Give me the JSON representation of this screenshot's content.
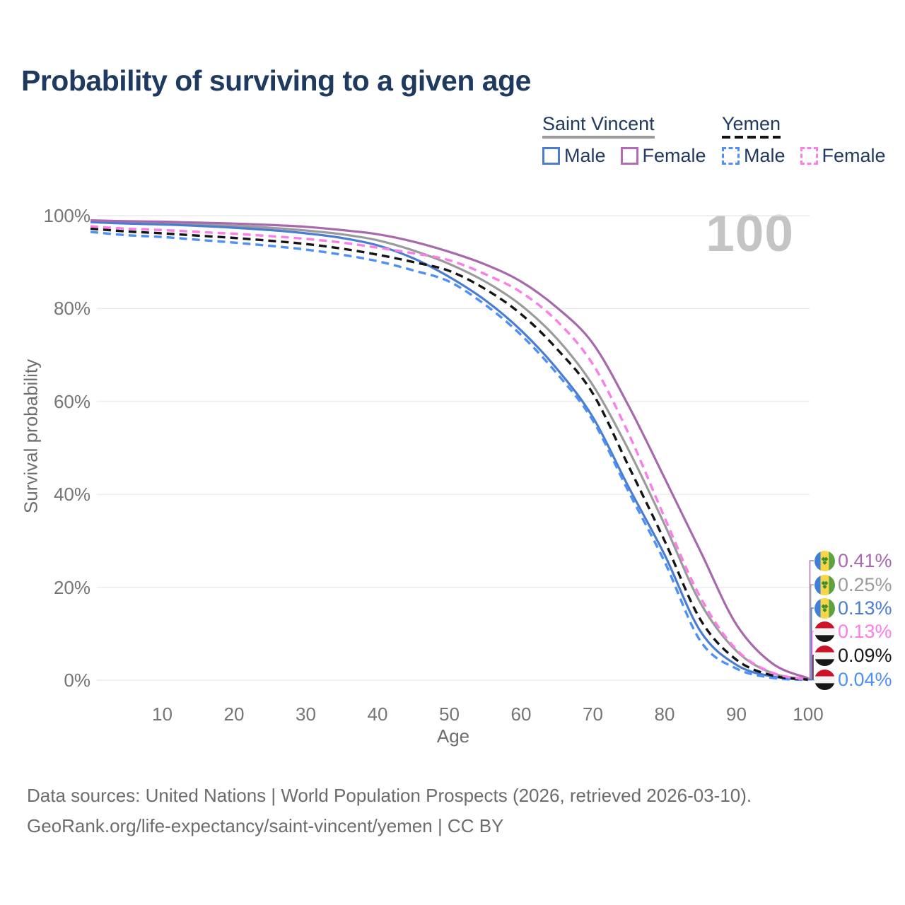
{
  "title": "Probability of surviving to a given age",
  "watermark": "100",
  "legend": {
    "groups": [
      {
        "title": "Saint Vincent",
        "line_style": "solid",
        "color": "#9b9b9b",
        "items": [
          {
            "label": "Male",
            "color": "#4a7dd0"
          },
          {
            "label": "Female",
            "color": "#b46ab4"
          }
        ]
      },
      {
        "title": "Yemen",
        "line_style": "dashed",
        "color": "#141414",
        "items": [
          {
            "label": "Male",
            "color": "#4e90f5"
          },
          {
            "label": "Female",
            "color": "#fc7de8"
          }
        ]
      }
    ]
  },
  "chart_data": {
    "type": "line",
    "title": "Probability of surviving to a given age",
    "xlabel": "Age",
    "ylabel": "Survival probability",
    "xlim": [
      0,
      100
    ],
    "ylim": [
      0,
      100
    ],
    "grid": "horizontal-only",
    "legend_position": "top-right",
    "annotation": "100",
    "x_ticks": [
      {
        "value": 10,
        "label": "10"
      },
      {
        "value": 20,
        "label": "20"
      },
      {
        "value": 30,
        "label": "30"
      },
      {
        "value": 40,
        "label": "40"
      },
      {
        "value": 50,
        "label": "50"
      },
      {
        "value": 60,
        "label": "60"
      },
      {
        "value": 70,
        "label": "70"
      },
      {
        "value": 80,
        "label": "80"
      },
      {
        "value": 90,
        "label": "90"
      },
      {
        "value": 100,
        "label": "100"
      }
    ],
    "y_ticks": [
      {
        "value": 0,
        "label": "0%"
      },
      {
        "value": 20,
        "label": "20%"
      },
      {
        "value": 40,
        "label": "40%"
      },
      {
        "value": 60,
        "label": "60%"
      },
      {
        "value": 80,
        "label": "80%"
      },
      {
        "value": 100,
        "label": "100%"
      }
    ],
    "ages": [
      0,
      5,
      10,
      15,
      20,
      25,
      30,
      35,
      40,
      45,
      50,
      55,
      60,
      65,
      70,
      75,
      80,
      85,
      90,
      95,
      100
    ],
    "series": [
      {
        "id": "sv-female",
        "name": "Saint Vincent Female",
        "country": "Saint Vincent",
        "sex": "Female",
        "color": "#a868ad",
        "dash": false,
        "end_label": "0.41%",
        "values": [
          99.0,
          98.8,
          98.7,
          98.5,
          98.3,
          98.0,
          97.6,
          96.9,
          96.0,
          94.4,
          92.2,
          89.5,
          85.8,
          80.2,
          72.5,
          59.0,
          43.5,
          27.7,
          12.0,
          3.6,
          0.41
        ]
      },
      {
        "id": "sv-both",
        "name": "Saint Vincent Both sexes",
        "country": "Saint Vincent",
        "sex": "Both",
        "color": "#9b9b9b",
        "dash": false,
        "end_label": "0.25%",
        "values": [
          98.8,
          98.5,
          98.3,
          98.1,
          97.8,
          97.4,
          96.8,
          96.0,
          94.7,
          92.5,
          89.6,
          85.8,
          80.7,
          73.5,
          63.5,
          49.5,
          33.5,
          16.6,
          6.3,
          1.5,
          0.25
        ]
      },
      {
        "id": "sv-male",
        "name": "Saint Vincent Male",
        "country": "Saint Vincent",
        "sex": "Male",
        "color": "#4a7dd0",
        "dash": false,
        "end_label": "0.13%",
        "values": [
          98.6,
          98.3,
          98.1,
          97.8,
          97.4,
          96.9,
          96.2,
          95.2,
          93.6,
          90.8,
          86.8,
          81.8,
          75.3,
          67.0,
          56.6,
          41.5,
          27.0,
          10.5,
          3.3,
          0.8,
          0.13
        ]
      },
      {
        "id": "ye-female",
        "name": "Yemen Female",
        "country": "Yemen",
        "sex": "Female",
        "color": "#fc7de8",
        "dash": true,
        "end_label": "0.13%",
        "values": [
          97.7,
          97.2,
          96.9,
          96.5,
          96.1,
          95.6,
          95.0,
          94.2,
          93.1,
          91.9,
          90.4,
          87.4,
          83.5,
          77.3,
          68.0,
          53.0,
          35.0,
          17.8,
          6.6,
          1.6,
          0.13
        ]
      },
      {
        "id": "ye-both",
        "name": "Yemen Both sexes",
        "country": "Yemen",
        "sex": "Both",
        "color": "#141414",
        "dash": true,
        "end_label": "0.09%",
        "values": [
          97.2,
          96.6,
          96.2,
          95.7,
          95.2,
          94.6,
          93.9,
          92.9,
          91.6,
          90.0,
          88.1,
          84.2,
          78.8,
          71.3,
          61.7,
          46.0,
          30.0,
          13.0,
          4.4,
          1.0,
          0.09
        ]
      },
      {
        "id": "ye-male",
        "name": "Yemen Male",
        "country": "Yemen",
        "sex": "Male",
        "color": "#4e90f5",
        "dash": true,
        "end_label": "0.04%",
        "values": [
          96.5,
          95.8,
          95.4,
          94.8,
          94.2,
          93.5,
          92.7,
          91.6,
          90.2,
          88.2,
          85.8,
          80.8,
          74.3,
          66.0,
          55.9,
          40.5,
          25.5,
          8.4,
          2.5,
          0.5,
          0.04
        ]
      }
    ]
  },
  "end_labels": [
    {
      "series_id": "sv-female",
      "flag": "saint-vincent",
      "value": "0.41%",
      "color": "#a868ad"
    },
    {
      "series_id": "sv-both",
      "flag": "saint-vincent",
      "value": "0.25%",
      "color": "#9b9b9b"
    },
    {
      "series_id": "sv-male",
      "flag": "saint-vincent",
      "value": "0.13%",
      "color": "#4a7dd0"
    },
    {
      "series_id": "ye-female",
      "flag": "yemen",
      "value": "0.13%",
      "color": "#fc7de8"
    },
    {
      "series_id": "ye-both",
      "flag": "yemen",
      "value": "0.09%",
      "color": "#1a1a1a"
    },
    {
      "series_id": "ye-male",
      "flag": "yemen",
      "value": "0.04%",
      "color": "#4e90f5"
    }
  ],
  "footer": {
    "line1": "Data sources: United Nations | World Population Prospects (2026, retrieved 2026-03-10).",
    "line2": "GeoRank.org/life-expectancy/saint-vincent/yemen | CC BY"
  }
}
